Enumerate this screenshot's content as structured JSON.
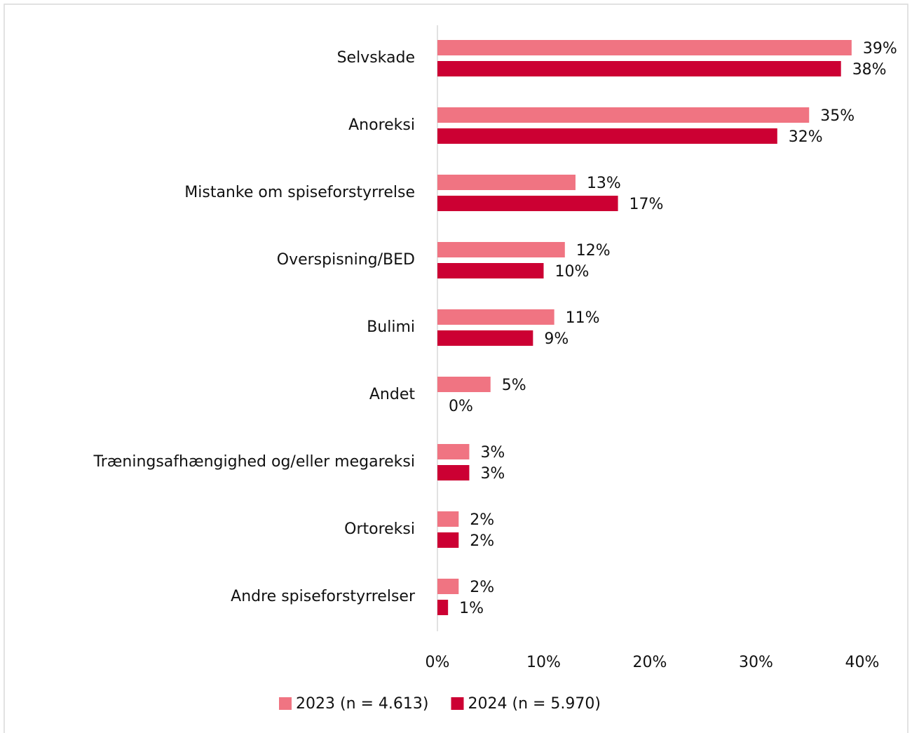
{
  "chart_data": {
    "type": "hbar",
    "categories": [
      "Selvskade",
      "Anoreksi",
      "Mistanke om spiseforstyrrelse",
      "Overspisning/BED",
      "Bulimi",
      "Andet",
      "Træningsafhængighed og/eller megareksi",
      "Ortoreksi",
      "Andre spiseforstyrrelser"
    ],
    "series": [
      {
        "name": "2023 (n = 4.613)",
        "color": "#f07482",
        "values": [
          39,
          35,
          13,
          12,
          11,
          5,
          3,
          2,
          2
        ],
        "value_labels": [
          "39%",
          "35%",
          "13%",
          "12%",
          "11%",
          "5%",
          "3%",
          "2%",
          "2%"
        ]
      },
      {
        "name": "2024 (n = 5.970)",
        "color": "#cc0033",
        "values": [
          38,
          32,
          17,
          10,
          9,
          0,
          3,
          2,
          1
        ],
        "value_labels": [
          "38%",
          "32%",
          "17%",
          "10%",
          "9%",
          "0%",
          "3%",
          "2%",
          "1%"
        ]
      }
    ],
    "xlim": [
      0,
      40
    ],
    "xticks": [
      {
        "value": 0,
        "label": "0%"
      },
      {
        "value": 10,
        "label": "10%"
      },
      {
        "value": 20,
        "label": "20%"
      },
      {
        "value": 30,
        "label": "30%"
      },
      {
        "value": 40,
        "label": "40%"
      }
    ],
    "legend": "bottom"
  }
}
